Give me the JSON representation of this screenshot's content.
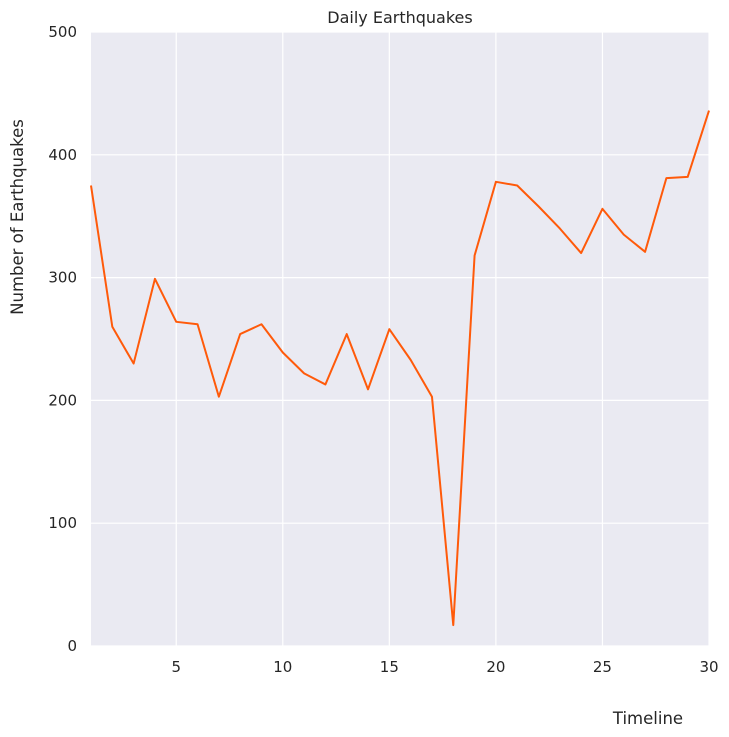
{
  "chart_data": {
    "type": "line",
    "title": "Daily Earthquakes",
    "xlabel": "Timeline",
    "ylabel": "Number of Earthquakes",
    "xlim": [
      1,
      30
    ],
    "ylim": [
      0,
      500
    ],
    "xticks": [
      5,
      10,
      15,
      20,
      25,
      30
    ],
    "yticks": [
      0,
      100,
      200,
      300,
      400,
      500
    ],
    "grid": true,
    "line_color": "#ff5a0a",
    "background_color": "#eaeaf2",
    "series": [
      {
        "x": [
          1,
          2,
          3,
          4,
          5,
          6,
          7,
          8,
          9,
          10,
          11,
          12,
          13,
          14,
          15,
          16,
          17,
          18,
          19,
          20,
          21,
          22,
          23,
          24,
          25,
          26,
          27,
          28,
          29,
          30
        ],
        "values": [
          375,
          260,
          230,
          299,
          264,
          262,
          203,
          254,
          262,
          239,
          222,
          213,
          254,
          209,
          258,
          233,
          203,
          17,
          318,
          378,
          375,
          358,
          340,
          320,
          356,
          335,
          321,
          381,
          382,
          436
        ]
      }
    ]
  }
}
